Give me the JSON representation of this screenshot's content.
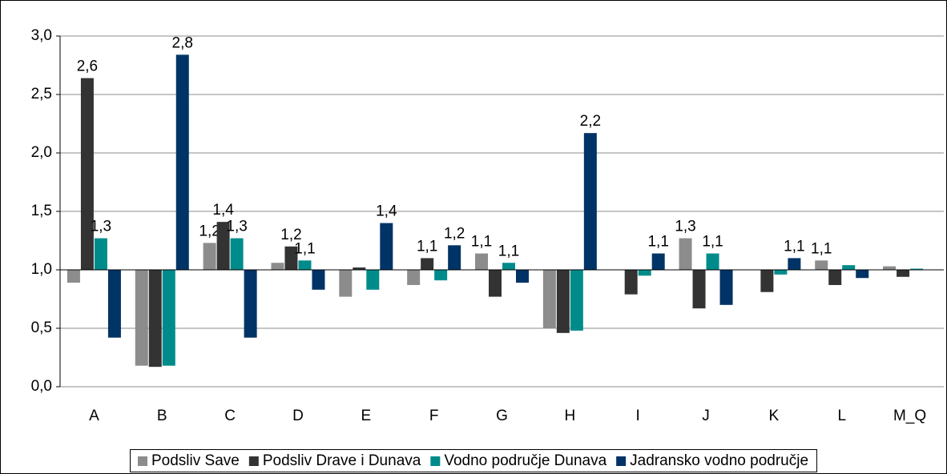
{
  "chart_data": {
    "type": "bar",
    "categories": [
      "A",
      "B",
      "C",
      "D",
      "E",
      "F",
      "G",
      "H",
      "I",
      "J",
      "K",
      "L",
      "M_Q"
    ],
    "series": [
      {
        "name": "Podsliv Save",
        "color": "#8c8c8c",
        "values": [
          0.89,
          0.18,
          1.23,
          1.06,
          0.77,
          0.87,
          1.14,
          0.5,
          1.0,
          1.27,
          1.0,
          1.08,
          1.03
        ],
        "value_labels": [
          null,
          null,
          "1,2",
          null,
          null,
          null,
          "1,1",
          null,
          null,
          "1,3",
          null,
          "1,1",
          null
        ]
      },
      {
        "name": "Podsliv Drave i Dunava",
        "color": "#333333",
        "values": [
          2.64,
          0.17,
          1.41,
          1.2,
          1.02,
          1.1,
          0.77,
          0.46,
          0.79,
          0.67,
          0.81,
          0.87,
          0.94
        ],
        "value_labels": [
          "2,6",
          null,
          "1,4",
          "1,2",
          null,
          "1,1",
          null,
          null,
          null,
          null,
          null,
          null,
          null
        ]
      },
      {
        "name": "Vodno područje Dunava",
        "color": "#008b8b",
        "values": [
          1.27,
          0.18,
          1.27,
          1.08,
          0.83,
          0.91,
          1.06,
          0.48,
          0.95,
          1.14,
          0.96,
          1.04,
          1.01
        ],
        "value_labels": [
          "1,3",
          null,
          "1,3",
          "1,1",
          null,
          null,
          "1,1",
          null,
          null,
          "1,1",
          null,
          null,
          null
        ]
      },
      {
        "name": "Jadransko vodno područje",
        "color": "#003366",
        "values": [
          0.42,
          2.84,
          0.42,
          0.83,
          1.4,
          1.21,
          0.89,
          2.17,
          1.14,
          0.7,
          1.1,
          0.93,
          1.0
        ],
        "value_labels": [
          null,
          "2,8",
          null,
          null,
          "1,4",
          "1,2",
          null,
          "2,2",
          "1,1",
          null,
          "1,1",
          null,
          null
        ]
      }
    ],
    "bar_base": 1,
    "ylim": [
      0,
      3
    ],
    "yticks": [
      {
        "value": 0,
        "label": "0,0"
      },
      {
        "value": 0.5,
        "label": "0,5"
      },
      {
        "value": 1,
        "label": "1,0"
      },
      {
        "value": 1.5,
        "label": "1,5"
      },
      {
        "value": 2,
        "label": "2,0"
      },
      {
        "value": 2.5,
        "label": "2,5"
      },
      {
        "value": 3,
        "label": "3,0"
      }
    ],
    "grid": true,
    "legend": "bottom"
  }
}
